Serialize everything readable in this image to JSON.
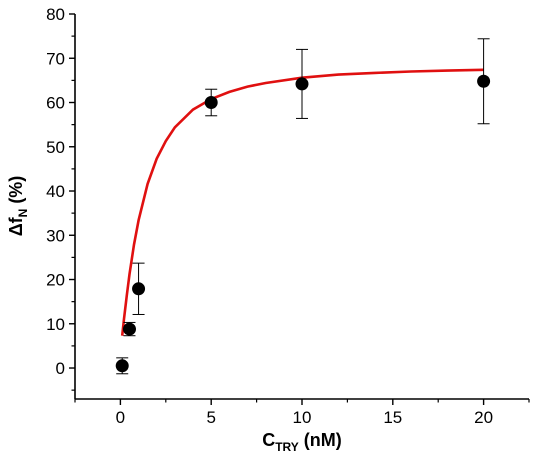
{
  "chart_data": {
    "type": "scatter",
    "xlabel": {
      "main": "C",
      "sub": "TRY",
      "unit": " (nM)"
    },
    "ylabel": {
      "main": "Δf",
      "sub": "N",
      "unit": " (%)"
    },
    "xlim": [
      -2.5,
      22.5
    ],
    "ylim": [
      -7,
      80
    ],
    "xticks": [
      0,
      5,
      10,
      15,
      20
    ],
    "yticks": [
      0,
      10,
      20,
      30,
      40,
      50,
      60,
      70,
      80
    ],
    "grid": false,
    "series": [
      {
        "type": "scatter",
        "color": "#000000",
        "points": [
          {
            "x": 0.1,
            "y": 0.5,
            "err": 1.8
          },
          {
            "x": 0.5,
            "y": 8.8,
            "err": 1.5
          },
          {
            "x": 1.0,
            "y": 17.9,
            "err": 5.8
          },
          {
            "x": 5.0,
            "y": 60.0,
            "err": 3.0
          },
          {
            "x": 10.0,
            "y": 64.2,
            "err": 7.8
          },
          {
            "x": 20.0,
            "y": 64.8,
            "err": 9.6
          }
        ]
      },
      {
        "type": "line",
        "color": "#e01010",
        "x": [
          0.1,
          0.2,
          0.35,
          0.5,
          0.75,
          1.0,
          1.5,
          2.0,
          2.5,
          3.0,
          4.0,
          5.0,
          6.0,
          7.0,
          8.0,
          10.0,
          12.0,
          14.0,
          16.0,
          18.0,
          20.0
        ],
        "y": [
          7.3,
          11.1,
          16.4,
          21.2,
          27.9,
          33.4,
          41.6,
          47.3,
          51.3,
          54.4,
          58.4,
          60.8,
          62.4,
          63.6,
          64.4,
          65.6,
          66.3,
          66.7,
          67.0,
          67.2,
          67.4
        ]
      }
    ]
  }
}
